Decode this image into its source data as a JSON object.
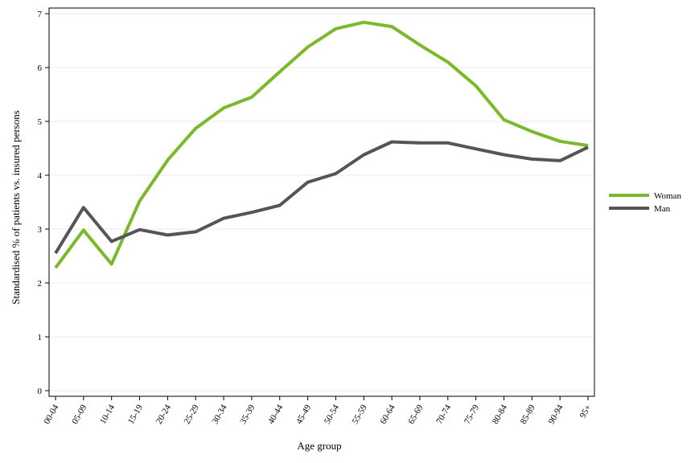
{
  "chart_data": {
    "type": "line",
    "xlabel": "Age group",
    "ylabel": "Standardised % of patients vs. insured persons",
    "ylim": [
      0,
      7
    ],
    "yticks": [
      0,
      1,
      2,
      3,
      4,
      5,
      6,
      7
    ],
    "grid": "horizontal",
    "legend_position": "right",
    "categories": [
      "00-04",
      "05-09",
      "10-14",
      "15-19",
      "20-24",
      "25-29",
      "30-34",
      "35-39",
      "40-44",
      "45-49",
      "50-54",
      "55-59",
      "60-64",
      "65-69",
      "70-74",
      "75-79",
      "80-84",
      "85-89",
      "90-94",
      "95+"
    ],
    "series": [
      {
        "name": "Woman",
        "color": "#7ab929",
        "values": [
          2.28,
          2.98,
          2.35,
          3.52,
          4.28,
          4.87,
          5.25,
          5.45,
          5.92,
          6.38,
          6.72,
          6.84,
          6.76,
          6.42,
          6.1,
          5.66,
          5.03,
          4.81,
          4.63,
          4.55
        ]
      },
      {
        "name": "Man",
        "color": "#555555",
        "values": [
          2.55,
          3.4,
          2.77,
          2.99,
          2.89,
          2.95,
          3.2,
          3.31,
          3.44,
          3.87,
          4.03,
          4.38,
          4.62,
          4.6,
          4.6,
          4.49,
          4.38,
          4.3,
          4.27,
          4.52
        ]
      }
    ]
  }
}
